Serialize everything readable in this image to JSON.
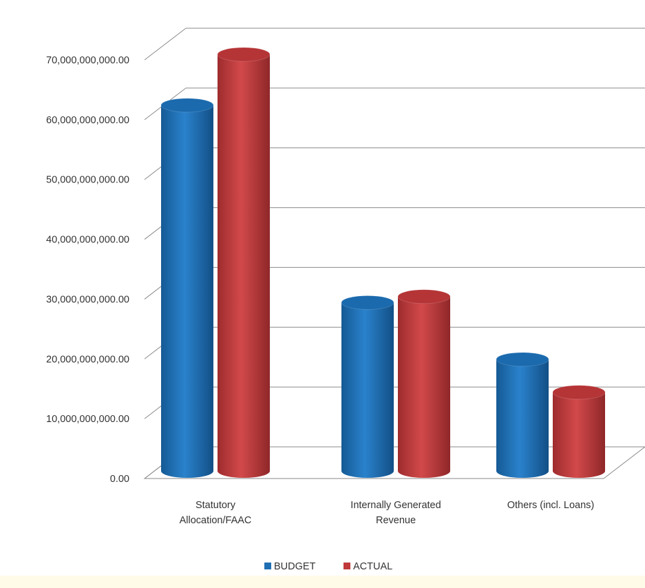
{
  "chart_data": {
    "type": "bar",
    "style": "3d-cylinder",
    "categories": [
      [
        "Statutory",
        "Allocation/FAAC"
      ],
      [
        "Internally Generated",
        "Revenue"
      ],
      [
        "Others (incl. Loans)"
      ]
    ],
    "series": [
      {
        "name": "BUDGET",
        "color": "#1f6fb5",
        "values": [
          60000000000,
          27000000000,
          17500000000
        ]
      },
      {
        "name": "ACTUAL",
        "color": "#c0393b",
        "values": [
          68500000000,
          28000000000,
          12000000000
        ]
      }
    ],
    "ylim": [
      0,
      70000000000
    ],
    "yticks": [
      0,
      10000000000,
      20000000000,
      30000000000,
      40000000000,
      50000000000,
      60000000000,
      70000000000
    ],
    "ytick_labels": [
      "0.00",
      "10,000,000,000.00",
      "20,000,000,000.00",
      "30,000,000,000.00",
      "40,000,000,000.00",
      "50,000,000,000.00",
      "60,000,000,000.00",
      "70,000,000,000.00"
    ],
    "grid": true,
    "legend_position": "bottom",
    "title": "",
    "xlabel": "",
    "ylabel": ""
  }
}
